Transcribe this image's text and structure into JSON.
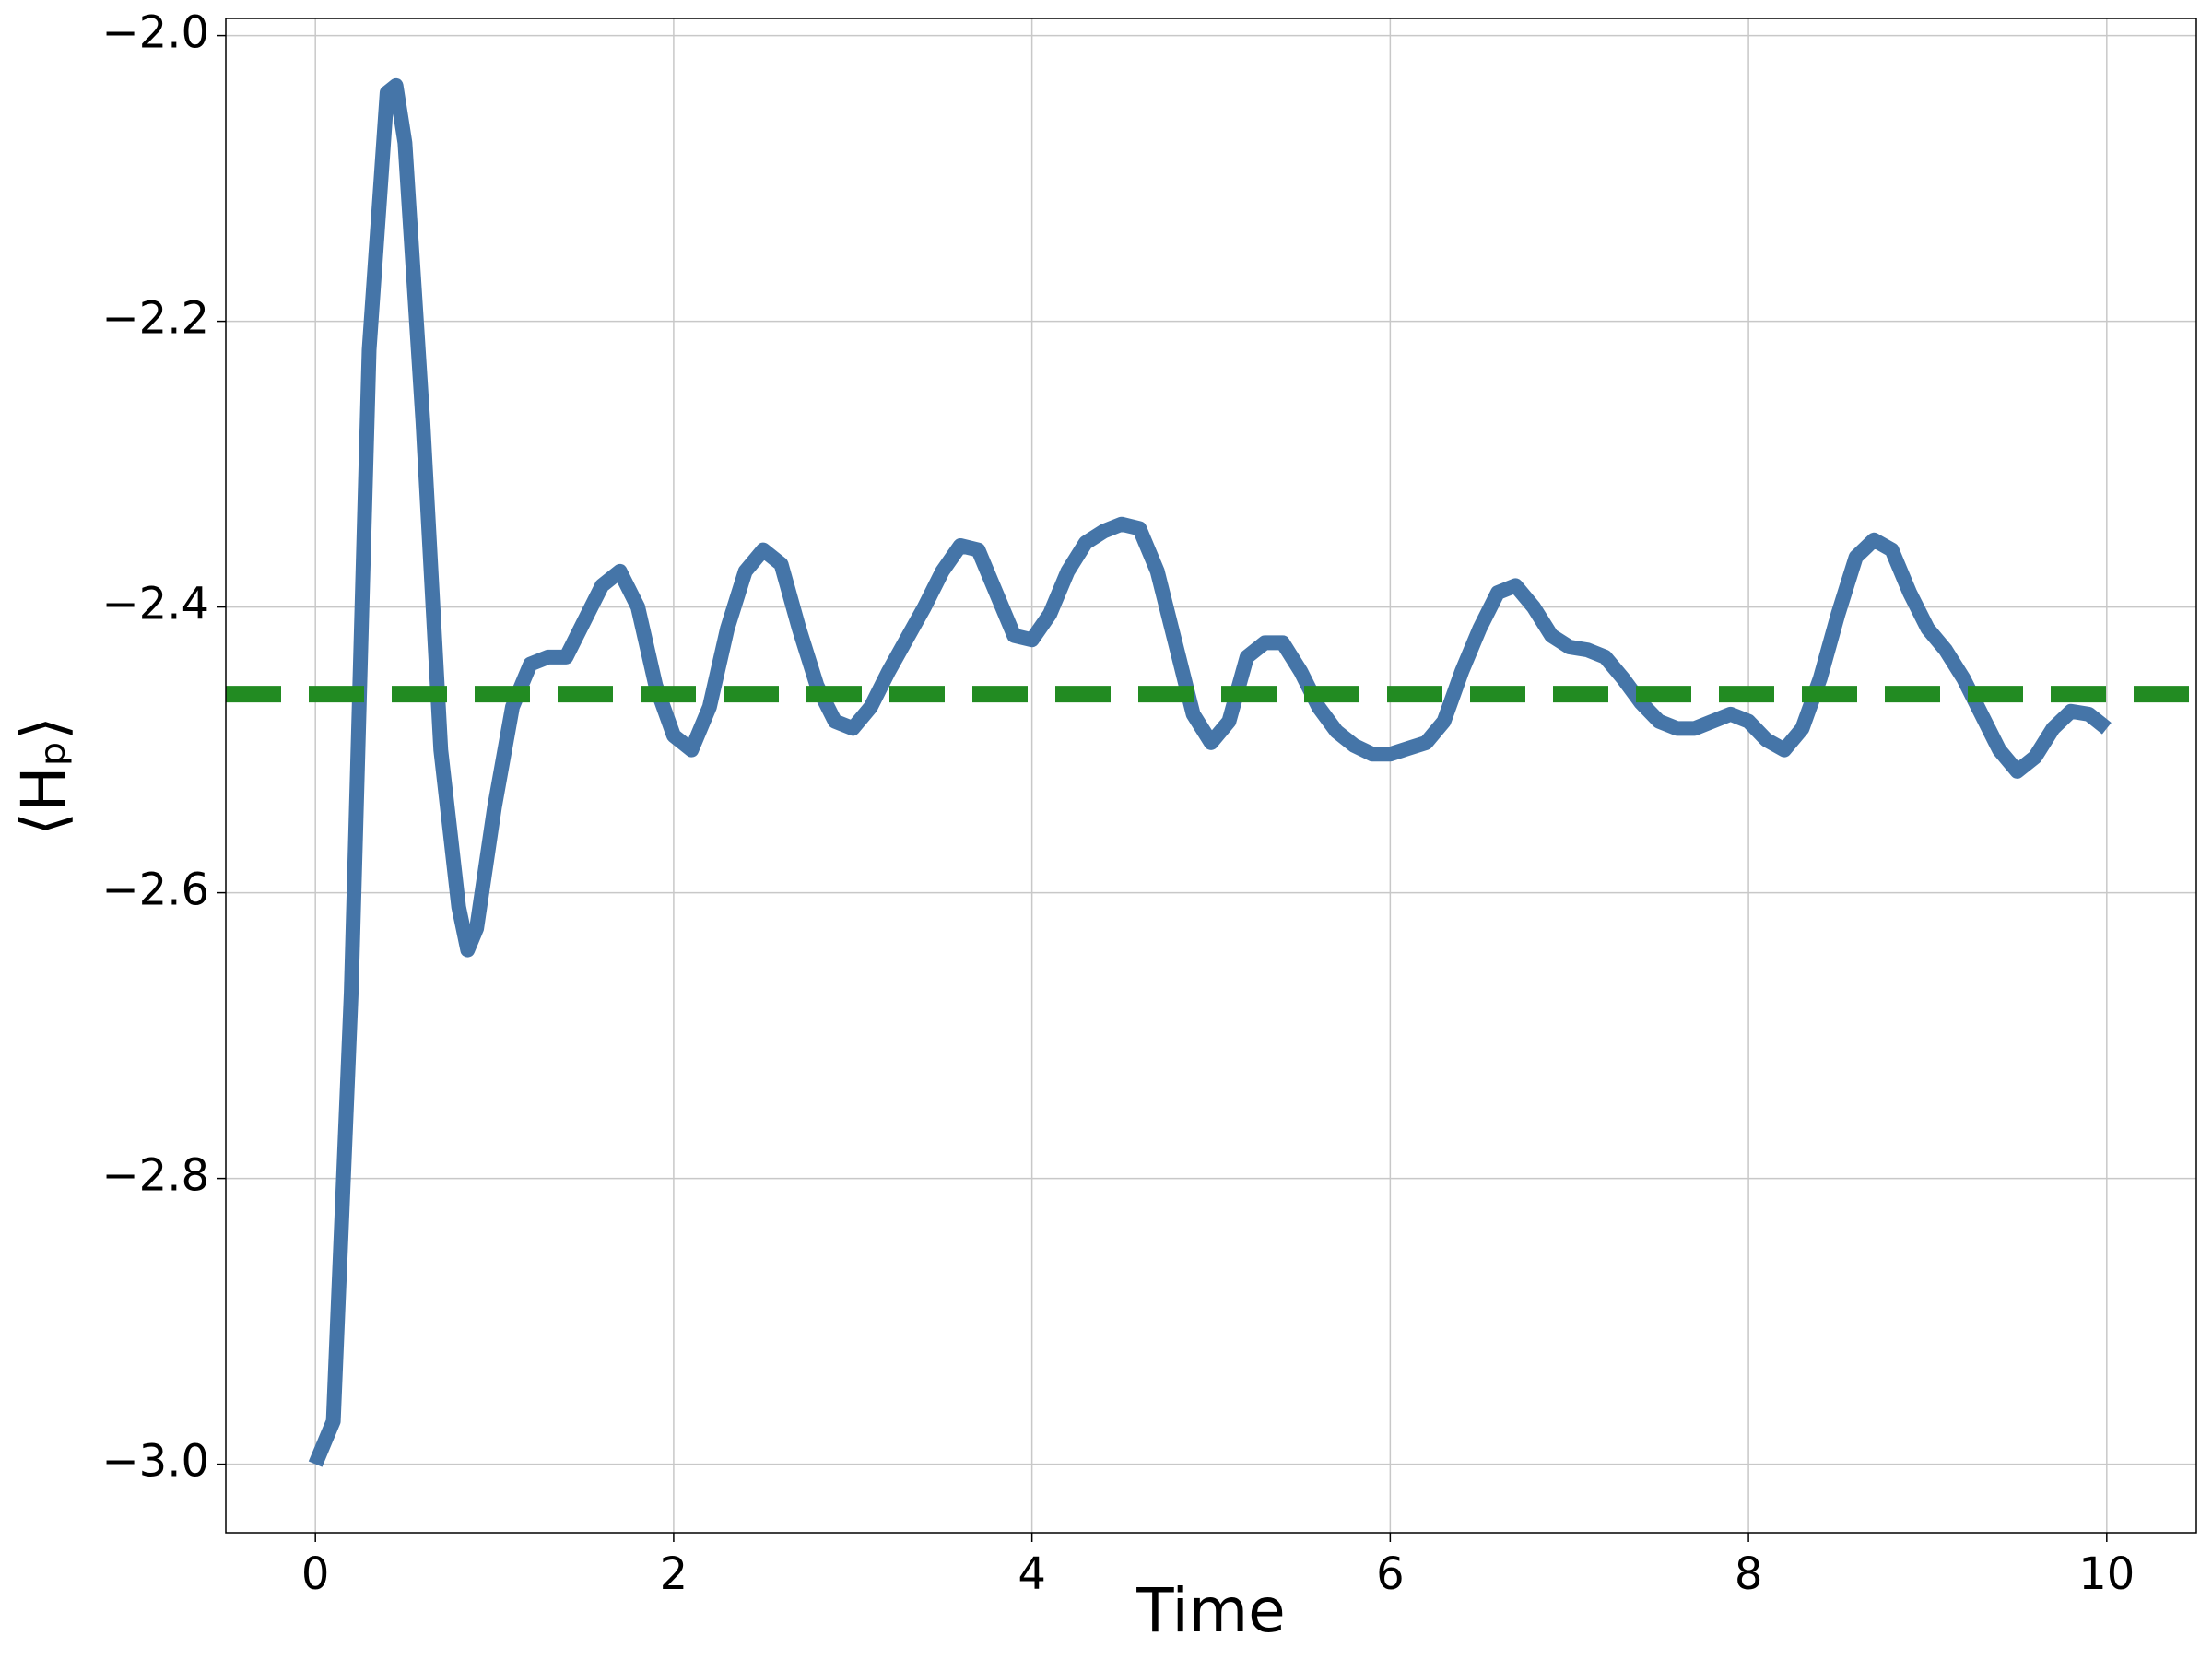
{
  "chart_data": {
    "type": "line",
    "xlabel": "Time",
    "ylabel": "⟨Hₚ⟩",
    "x": [
      0,
      0.1,
      0.2,
      0.3,
      0.4,
      0.45,
      0.5,
      0.6,
      0.7,
      0.8,
      0.85,
      0.9,
      1.0,
      1.1,
      1.2,
      1.3,
      1.4,
      1.5,
      1.6,
      1.7,
      1.8,
      1.9,
      2.0,
      2.1,
      2.2,
      2.3,
      2.4,
      2.5,
      2.6,
      2.7,
      2.8,
      2.9,
      3.0,
      3.1,
      3.2,
      3.4,
      3.5,
      3.6,
      3.7,
      3.8,
      3.9,
      4.0,
      4.1,
      4.2,
      4.3,
      4.4,
      4.5,
      4.6,
      4.7,
      4.8,
      4.9,
      5.0,
      5.1,
      5.2,
      5.3,
      5.4,
      5.5,
      5.6,
      5.7,
      5.8,
      5.9,
      6.0,
      6.1,
      6.2,
      6.3,
      6.4,
      6.5,
      6.6,
      6.7,
      6.8,
      6.9,
      7.0,
      7.1,
      7.2,
      7.3,
      7.4,
      7.5,
      7.6,
      7.7,
      7.8,
      7.9,
      8.0,
      8.1,
      8.2,
      8.3,
      8.4,
      8.5,
      8.6,
      8.7,
      8.8,
      8.9,
      9.0,
      9.1,
      9.2,
      9.3,
      9.4,
      9.5,
      9.6,
      9.7,
      9.8,
      9.9,
      10.0
    ],
    "series": [
      {
        "color": "#4575a8",
        "values": [
          -3.0,
          -2.97,
          -2.67,
          -2.22,
          -2.04,
          -2.035,
          -2.075,
          -2.27,
          -2.5,
          -2.61,
          -2.64,
          -2.625,
          -2.54,
          -2.47,
          -2.44,
          -2.435,
          -2.435,
          -2.41,
          -2.385,
          -2.375,
          -2.4,
          -2.455,
          -2.49,
          -2.5,
          -2.47,
          -2.415,
          -2.375,
          -2.36,
          -2.37,
          -2.415,
          -2.455,
          -2.48,
          -2.485,
          -2.47,
          -2.445,
          -2.4,
          -2.375,
          -2.357,
          -2.36,
          -2.39,
          -2.42,
          -2.423,
          -2.405,
          -2.375,
          -2.355,
          -2.347,
          -2.342,
          -2.345,
          -2.375,
          -2.425,
          -2.475,
          -2.495,
          -2.48,
          -2.435,
          -2.425,
          -2.425,
          -2.445,
          -2.47,
          -2.487,
          -2.497,
          -2.503,
          -2.503,
          -2.499,
          -2.495,
          -2.48,
          -2.445,
          -2.415,
          -2.39,
          -2.385,
          -2.4,
          -2.42,
          -2.428,
          -2.43,
          -2.435,
          -2.45,
          -2.467,
          -2.48,
          -2.485,
          -2.485,
          -2.48,
          -2.475,
          -2.48,
          -2.493,
          -2.5,
          -2.485,
          -2.45,
          -2.405,
          -2.365,
          -2.353,
          -2.36,
          -2.39,
          -2.415,
          -2.43,
          -2.45,
          -2.475,
          -2.5,
          -2.515,
          -2.505,
          -2.485,
          -2.473,
          -2.475,
          -2.485
        ]
      }
    ],
    "hline": {
      "value": -2.461,
      "color": "#228b22",
      "dashed": true
    },
    "xlim": [
      -0.5,
      10.5
    ],
    "ylim": [
      -3.048,
      -1.988
    ],
    "xticks": [
      0,
      2,
      4,
      6,
      8,
      10
    ],
    "yticks": [
      {
        "value": -3.0,
        "label": "−3.0"
      },
      {
        "value": -2.8,
        "label": "−2.8"
      },
      {
        "value": -2.6,
        "label": "−2.6"
      },
      {
        "value": -2.4,
        "label": "−2.4"
      },
      {
        "value": -2.2,
        "label": "−2.2"
      },
      {
        "value": -2.0,
        "label": "−2.0"
      }
    ],
    "grid": true
  }
}
